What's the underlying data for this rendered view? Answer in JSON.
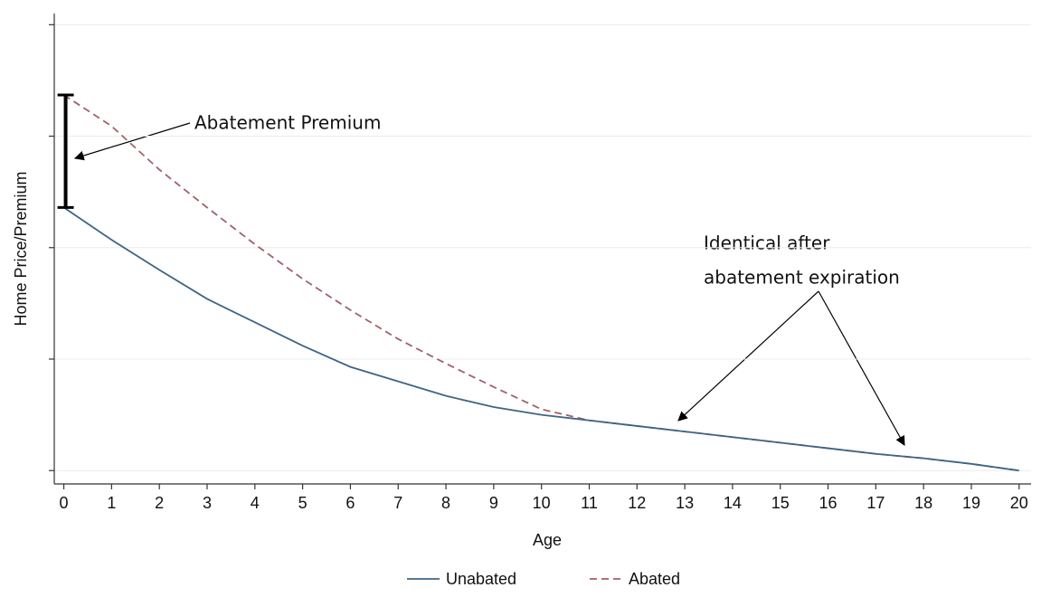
{
  "chart_data": {
    "type": "line",
    "x_label": "Age",
    "y_label": "Home Price/Premium",
    "x": [
      0,
      1,
      2,
      3,
      4,
      5,
      6,
      7,
      8,
      9,
      10,
      11,
      12,
      13,
      14,
      15,
      16,
      17,
      18,
      19,
      20
    ],
    "xlim": [
      -0.2,
      20.25
    ],
    "xticks": [
      0,
      1,
      2,
      3,
      4,
      5,
      6,
      7,
      8,
      9,
      10,
      11,
      12,
      13,
      14,
      15,
      16,
      17,
      18,
      19,
      20
    ],
    "ylim": [
      -0.12,
      4.1
    ],
    "yticks": [
      0,
      1,
      2,
      3,
      4
    ],
    "grid": true,
    "series": [
      {
        "name": "Unabated",
        "color": "#3e6485",
        "dash": "solid",
        "values": [
          2.36,
          2.07,
          1.8,
          1.54,
          1.33,
          1.12,
          0.93,
          0.8,
          0.67,
          0.57,
          0.5,
          0.45,
          0.4,
          0.35,
          0.3,
          0.25,
          0.2,
          0.15,
          0.11,
          0.06,
          0
        ]
      },
      {
        "name": "Abated",
        "color": "#a0616a",
        "dash": "dashed",
        "values": [
          3.37,
          3.09,
          2.7,
          2.36,
          2.03,
          1.72,
          1.44,
          1.18,
          0.96,
          0.75,
          0.55,
          0.45,
          0.4,
          0.35,
          0.3,
          0.25,
          0.2,
          0.15,
          0.11,
          0.06,
          0
        ]
      }
    ],
    "annotations": [
      {
        "text": "Abatement Premium"
      },
      {
        "lines": [
          "Identical after",
          "abatement expiration"
        ]
      }
    ]
  }
}
